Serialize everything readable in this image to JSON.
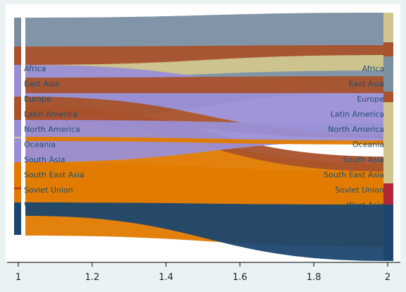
{
  "chart_data": {
    "type": "sankey",
    "title": "",
    "xlabel": "",
    "ylabel": "",
    "xlim": [
      1,
      2
    ],
    "x_ticks": [
      "1",
      "1.2",
      "1.4",
      "1.6",
      "1.8",
      "2"
    ],
    "grid": false,
    "legend": "none",
    "left_nodes": [
      {
        "label": "Africa",
        "color": "#7b8fa3",
        "y0": 25,
        "y1": 172
      },
      {
        "label": "East Asia",
        "color": "#a9522c",
        "y0": 66,
        "y1": 92
      },
      {
        "label": "Europe",
        "color": "#9a8fd6",
        "y0": 92,
        "y1": 137
      },
      {
        "label": "Latin America",
        "color": "#a9522c",
        "y0": 137,
        "y1": 170
      },
      {
        "label": "North America",
        "color": "#9a8fd6",
        "y0": 170,
        "y1": 230
      },
      {
        "label": "Oceania",
        "color": "#d0c58c",
        "y0": 194,
        "y1": 196
      },
      {
        "label": "South Asia",
        "color": "#e07b00",
        "y0": 230,
        "y1": 287
      },
      {
        "label": "South East Asia",
        "color": "#e07b00",
        "y0": 248,
        "y1": 250
      },
      {
        "label": "Soviet Union",
        "color": "#b0283a",
        "y0": 266,
        "y1": 268
      },
      {
        "label": "West Asia",
        "color": "#1c466e",
        "y0": 287,
        "y1": 333
      }
    ],
    "right_nodes": [
      {
        "label": "Africa",
        "color": "#d0c58c",
        "y0": 18,
        "y1": 60
      },
      {
        "label": "East Asia",
        "color": "#a9522c",
        "y0": 60,
        "y1": 80
      },
      {
        "label": "Europe",
        "color": "#7b8fa3",
        "y0": 80,
        "y1": 130
      },
      {
        "label": "Latin America",
        "color": "#a9522c",
        "y0": 130,
        "y1": 145
      },
      {
        "label": "North America",
        "color": "#d0c58c",
        "y0": 145,
        "y1": 260
      },
      {
        "label": "Oceania",
        "color": "#d0c58c",
        "y0": 198,
        "y1": 200
      },
      {
        "label": "South Asia",
        "color": "#d0c58c",
        "y0": 222,
        "y1": 224
      },
      {
        "label": "South East Asia",
        "color": "#b0283a",
        "y0": 260,
        "y1": 268
      },
      {
        "label": "Soviet Union",
        "color": "#b0283a",
        "y0": 268,
        "y1": 290
      },
      {
        "label": "West Asia",
        "color": "#1c466e",
        "y0": 290,
        "y1": 370
      }
    ],
    "flows": [
      {
        "color": "#7b8fa3",
        "l0": 25,
        "l1": 172,
        "r0": 18,
        "r1": 130
      },
      {
        "color": "#e07b00",
        "l0": 168,
        "l1": 334,
        "r0": 232,
        "r1": 350
      },
      {
        "color": "#1c466e",
        "l0": 287,
        "l1": 306,
        "r0": 290,
        "r1": 370
      },
      {
        "color": "#d0c58c",
        "l0": 90,
        "l1": 110,
        "r0": 78,
        "r1": 100
      },
      {
        "color": "#9a8fd6",
        "l0": 92,
        "l1": 137,
        "r0": 128,
        "r1": 190
      },
      {
        "color": "#a9522c",
        "l0": 66,
        "l1": 92,
        "r0": 64,
        "r1": 78
      },
      {
        "color": "#a9522c",
        "l0": 110,
        "l1": 132,
        "r0": 108,
        "r1": 132
      },
      {
        "color": "#a9522c",
        "l0": 137,
        "l1": 170,
        "r0": 190,
        "r1": 196
      },
      {
        "color": "#a9522c",
        "l0": 150,
        "l1": 172,
        "r0": 222,
        "r1": 243
      },
      {
        "color": "#9a8fd6",
        "l0": 170,
        "l1": 230,
        "r0": 175,
        "r1": 200
      },
      {
        "color": "#e07b00",
        "l0": 194,
        "l1": 200,
        "r0": 199,
        "r1": 205
      },
      {
        "color": "#e07b00",
        "l0": 230,
        "l1": 287,
        "r0": 243,
        "r1": 290
      }
    ]
  }
}
